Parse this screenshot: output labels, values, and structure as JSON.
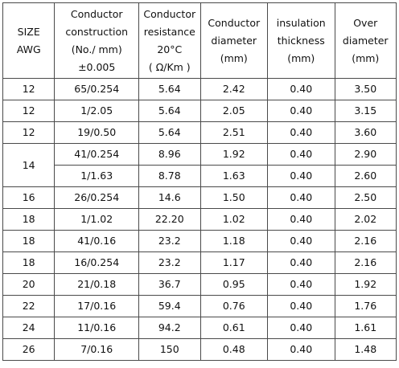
{
  "headers": [
    {
      "lines": [
        "SIZE",
        "AWG"
      ]
    },
    {
      "lines": [
        "Conductor",
        "construction",
        "(No./ mm)",
        "±0.005"
      ]
    },
    {
      "lines": [
        "Conductor",
        "resistance",
        "20°C",
        "( Ω/Km )"
      ]
    },
    {
      "lines": [
        "Conductor",
        "diameter",
        "(mm)"
      ]
    },
    {
      "lines": [
        "insulation",
        "thickness",
        "(mm)"
      ]
    },
    {
      "lines": [
        "Over",
        "diameter",
        "(mm)"
      ]
    }
  ],
  "rows": [
    {
      "size": "12",
      "construction": "65/0.254",
      "resistance": "5.64",
      "diameter": "2.42",
      "insulation": "0.40",
      "over": "3.50"
    },
    {
      "size": "12",
      "construction": "1/2.05",
      "resistance": "5.64",
      "diameter": "2.05",
      "insulation": "0.40",
      "over": "3.15"
    },
    {
      "size": "12",
      "construction": "19/0.50",
      "resistance": "5.64",
      "diameter": "2.51",
      "insulation": "0.40",
      "over": "3.60"
    },
    {
      "size": "14",
      "construction": "41/0.254",
      "resistance": "8.96",
      "diameter": "1.92",
      "insulation": "0.40",
      "over": "2.90"
    },
    {
      "size": "",
      "construction": "1/1.63",
      "resistance": "8.78",
      "diameter": "1.63",
      "insulation": "0.40",
      "over": "2.60"
    },
    {
      "size": "16",
      "construction": "26/0.254",
      "resistance": "14.6",
      "diameter": "1.50",
      "insulation": "0.40",
      "over": "2.50"
    },
    {
      "size": "18",
      "construction": "1/1.02",
      "resistance": "22.20",
      "diameter": "1.02",
      "insulation": "0.40",
      "over": "2.02"
    },
    {
      "size": "18",
      "construction": "41/0.16",
      "resistance": "23.2",
      "diameter": "1.18",
      "insulation": "0.40",
      "over": "2.16"
    },
    {
      "size": "18",
      "construction": "16/0.254",
      "resistance": "23.2",
      "diameter": "1.17",
      "insulation": "0.40",
      "over": "2.16"
    },
    {
      "size": "20",
      "construction": "21/0.18",
      "resistance": "36.7",
      "diameter": "0.95",
      "insulation": "0.40",
      "over": "1.92"
    },
    {
      "size": "22",
      "construction": "17/0.16",
      "resistance": "59.4",
      "diameter": "0.76",
      "insulation": "0.40",
      "over": "1.76"
    },
    {
      "size": "24",
      "construction": "11/0.16",
      "resistance": "94.2",
      "diameter": "0.61",
      "insulation": "0.40",
      "over": "1.61"
    },
    {
      "size": "26",
      "construction": "7/0.16",
      "resistance": "150",
      "diameter": "0.48",
      "insulation": "0.40",
      "over": "1.48"
    }
  ]
}
